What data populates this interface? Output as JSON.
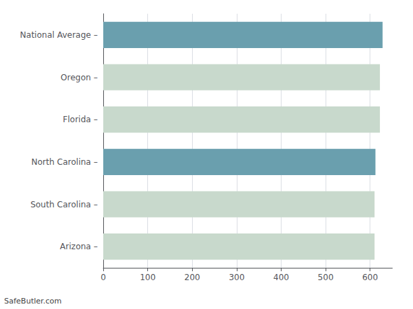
{
  "chart_data": {
    "type": "bar",
    "orientation": "horizontal",
    "categories": [
      "Arizona –",
      "South Carolina –",
      "North Carolina –",
      "Florida –",
      "Oregon –",
      "National Average –"
    ],
    "values": [
      610,
      610,
      612,
      622,
      622,
      628
    ],
    "colors": [
      "#c8d9cc",
      "#c8d9cc",
      "#6a9fae",
      "#c8d9cc",
      "#c8d9cc",
      "#6a9fae"
    ],
    "xlim": [
      0,
      650
    ],
    "xticks": [
      0,
      100,
      200,
      300,
      400,
      500,
      600
    ],
    "grid": true,
    "annotations": [
      "SafeButler.com"
    ]
  }
}
